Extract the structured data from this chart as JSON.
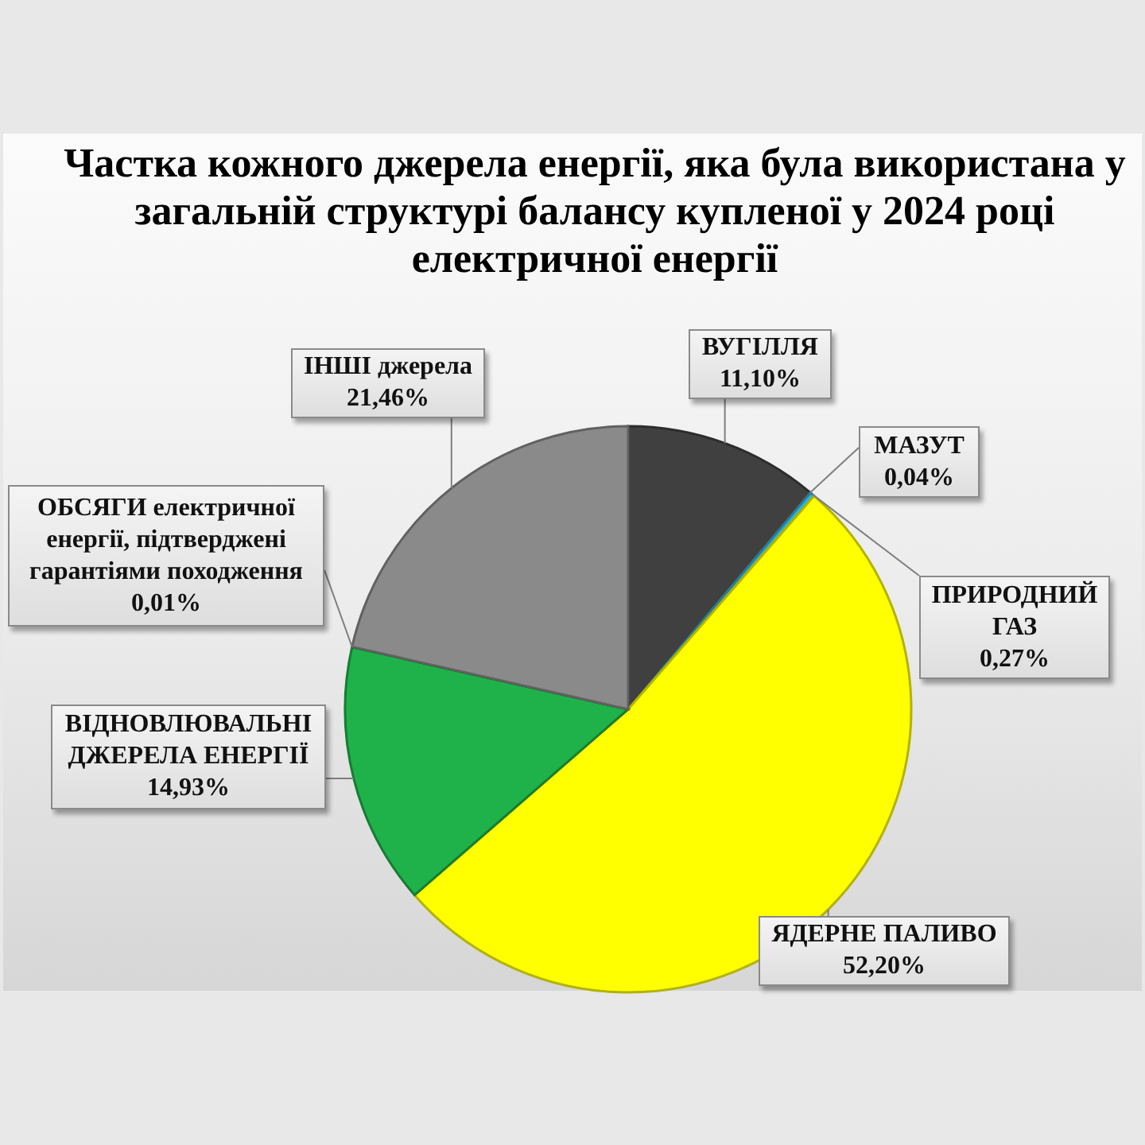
{
  "chart_data": {
    "type": "pie",
    "title": "Частка кожного джерела енергії, яка була використана у загальній структурі балансу купленої у 2024 році електричної енергії",
    "categories": [
      "ВУГІЛЛЯ",
      "МАЗУТ",
      "ПРИРОДНИЙ ГАЗ",
      "ЯДЕРНЕ ПАЛИВО",
      "ВІДНОВЛЮВАЛЬНІ ДЖЕРЕЛА ЕНЕРГІЇ",
      "ОБСЯГИ електричної енергії, підтверджені гарантіями походження",
      "ІНШІ джерела"
    ],
    "values": [
      11.1,
      0.04,
      0.27,
      52.2,
      14.93,
      0.01,
      21.46
    ],
    "value_labels": [
      "11,10%",
      "0,04%",
      "0,27%",
      "52,20%",
      "14,93%",
      "0,01%",
      "21,46%"
    ],
    "colors": [
      "#404040",
      "#b5531a",
      "#2bb5e8",
      "#ffff00",
      "#1fb24a",
      "#1d6b34",
      "#8a8a8a"
    ]
  }
}
